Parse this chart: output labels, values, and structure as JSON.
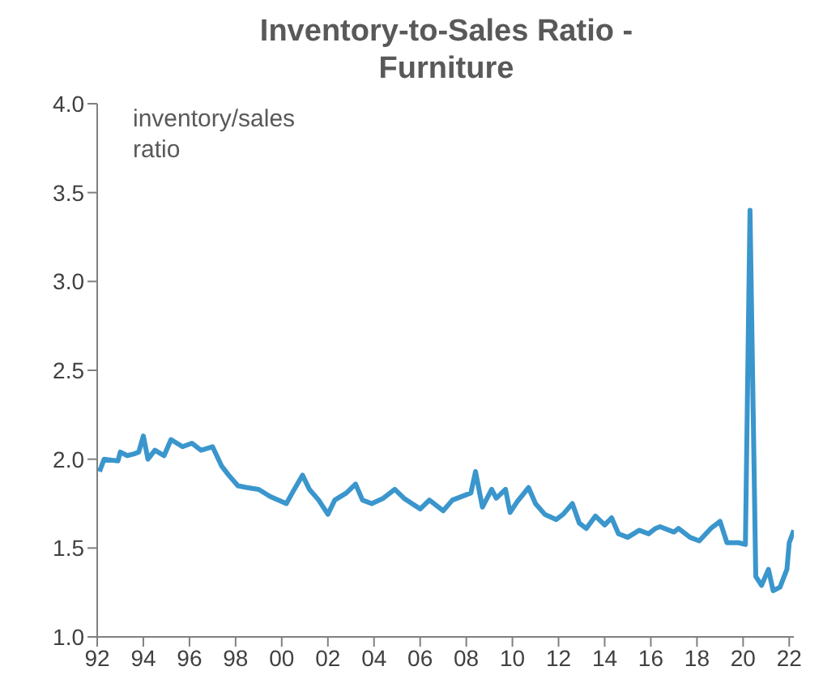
{
  "chart_data": {
    "type": "line",
    "title": "Inventory-to-Sales Ratio - Furniture",
    "ylabel": "inventory/sales ratio",
    "x": [
      1992.1,
      1992.3,
      1992.9,
      1993.0,
      1993.3,
      1993.6,
      1993.8,
      1994.0,
      1994.2,
      1994.5,
      1994.9,
      1995.2,
      1995.7,
      1996.1,
      1996.5,
      1997.0,
      1997.4,
      1997.7,
      1998.1,
      1998.5,
      1999.0,
      1999.5,
      2000.2,
      2000.5,
      2000.9,
      2001.2,
      2001.6,
      2002.0,
      2002.3,
      2002.8,
      2003.2,
      2003.5,
      2003.9,
      2004.4,
      2004.9,
      2005.3,
      2006.0,
      2006.4,
      2007.0,
      2007.4,
      2008.2,
      2008.4,
      2008.7,
      2009.1,
      2009.3,
      2009.7,
      2009.9,
      2010.2,
      2010.7,
      2011.0,
      2011.4,
      2011.9,
      2012.2,
      2012.6,
      2012.9,
      2013.2,
      2013.6,
      2014.0,
      2014.3,
      2014.6,
      2015.0,
      2015.5,
      2015.9,
      2016.2,
      2016.4,
      2017.0,
      2017.2,
      2017.7,
      2018.1,
      2018.6,
      2019.0,
      2019.3,
      2019.8,
      2020.1,
      2020.3,
      2020.55,
      2020.8,
      2021.1,
      2021.3,
      2021.6,
      2021.9,
      2022.0,
      2022.2
    ],
    "series": [
      {
        "color": "#3a96cc",
        "values": [
          1.93,
          2.0,
          1.99,
          2.04,
          2.02,
          2.03,
          2.04,
          2.13,
          2.0,
          2.05,
          2.02,
          2.11,
          2.07,
          2.09,
          2.05,
          2.07,
          1.96,
          1.91,
          1.85,
          1.84,
          1.83,
          1.79,
          1.75,
          1.82,
          1.91,
          1.83,
          1.77,
          1.69,
          1.77,
          1.81,
          1.86,
          1.77,
          1.75,
          1.78,
          1.83,
          1.78,
          1.72,
          1.77,
          1.71,
          1.77,
          1.81,
          1.93,
          1.73,
          1.83,
          1.78,
          1.83,
          1.7,
          1.76,
          1.84,
          1.75,
          1.69,
          1.66,
          1.69,
          1.75,
          1.64,
          1.61,
          1.68,
          1.63,
          1.67,
          1.58,
          1.56,
          1.6,
          1.58,
          1.61,
          1.62,
          1.59,
          1.61,
          1.56,
          1.54,
          1.61,
          1.65,
          1.53,
          1.53,
          1.52,
          3.4,
          1.34,
          1.29,
          1.38,
          1.26,
          1.28,
          1.38,
          1.53,
          1.6
        ]
      }
    ],
    "xlim": [
      1992,
      2022.2
    ],
    "xticks": [
      {
        "value": 1992,
        "label": "92"
      },
      {
        "value": 1994,
        "label": "94"
      },
      {
        "value": 1996,
        "label": "96"
      },
      {
        "value": 1998,
        "label": "98"
      },
      {
        "value": 2000,
        "label": "00"
      },
      {
        "value": 2002,
        "label": "02"
      },
      {
        "value": 2004,
        "label": "04"
      },
      {
        "value": 2006,
        "label": "06"
      },
      {
        "value": 2008,
        "label": "08"
      },
      {
        "value": 2010,
        "label": "10"
      },
      {
        "value": 2012,
        "label": "12"
      },
      {
        "value": 2014,
        "label": "14"
      },
      {
        "value": 2016,
        "label": "16"
      },
      {
        "value": 2018,
        "label": "18"
      },
      {
        "value": 2020,
        "label": "20"
      },
      {
        "value": 2022,
        "label": "22"
      }
    ],
    "ylim": [
      1.0,
      4.0
    ],
    "yticks": [
      {
        "value": 1,
        "label": "1.0"
      },
      {
        "value": 1.5,
        "label": "1.5"
      },
      {
        "value": 2,
        "label": "2.0"
      },
      {
        "value": 2.5,
        "label": "2.5"
      },
      {
        "value": 3,
        "label": "3.0"
      },
      {
        "value": 3.5,
        "label": "3.5"
      },
      {
        "value": 4,
        "label": "4.0"
      }
    ],
    "grid": false,
    "legend": false,
    "marker": "none",
    "line_style": "solid"
  }
}
